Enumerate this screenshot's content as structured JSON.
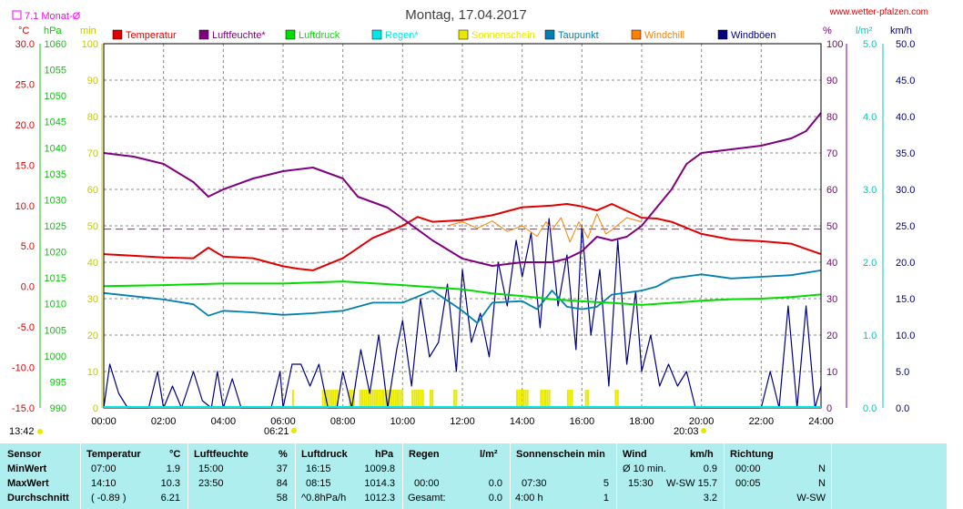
{
  "legend_box_label": "7.1 Monat-Ø",
  "website": "www.wetter-pfalzen.com",
  "colors": {
    "temperature": "#e00000",
    "humidity": "#800080",
    "pressure": "#00dd00",
    "rain": "#00e8e8",
    "sunshine": "#e8e800",
    "dewpoint": "#0080b0",
    "windchill": "#ff8000",
    "gusts": "#000080",
    "month_avg": "#ff00ff"
  },
  "chart_data": {
    "type": "line",
    "title": "Montag, 17.04.2017",
    "x_ticks": [
      "00:00",
      "02:00",
      "04:00",
      "06:00",
      "08:00",
      "10:00",
      "12:00",
      "14:00",
      "16:00",
      "18:00",
      "20:00",
      "22:00",
      "24:00"
    ],
    "sunrise": "06:21",
    "sunset": "20:03",
    "time_marker": "13:42",
    "axes": {
      "temperature": {
        "unit": "°C",
        "range": [
          -15,
          30
        ],
        "ticks": [
          "30.0",
          "25.0",
          "20.0",
          "15.0",
          "10.0",
          "5.0",
          "0.0",
          "-5.0",
          "-10.0",
          "-15.0"
        ]
      },
      "pressure": {
        "unit": "hPa",
        "range": [
          990,
          1060
        ],
        "ticks": [
          "1060",
          "1055",
          "1050",
          "1045",
          "1040",
          "1035",
          "1030",
          "1025",
          "1020",
          "1015",
          "1010",
          "1005",
          "1000",
          "995",
          "990"
        ]
      },
      "sunshine": {
        "unit": "min",
        "range": [
          0,
          100
        ],
        "ticks": [
          "100",
          "90",
          "80",
          "70",
          "60",
          "50",
          "40",
          "30",
          "20",
          "10",
          "0"
        ]
      },
      "humidity": {
        "unit": "%",
        "range": [
          0,
          100
        ],
        "ticks": [
          "100",
          "90",
          "80",
          "70",
          "60",
          "50",
          "40",
          "30",
          "20",
          "10",
          "0"
        ]
      },
      "rain": {
        "unit": "l/m²",
        "range": [
          0,
          5
        ],
        "ticks": [
          "5.0",
          "4.0",
          "3.0",
          "2.0",
          "1.0",
          "0.0"
        ]
      },
      "wind": {
        "unit": "km/h",
        "range": [
          0,
          50
        ],
        "ticks": [
          "50.0",
          "45.0",
          "40.0",
          "35.0",
          "30.0",
          "25.0",
          "20.0",
          "15.0",
          "10.0",
          "5.0",
          "0.0"
        ]
      }
    },
    "legend": [
      {
        "name": "Temperatur",
        "color": "#e00000"
      },
      {
        "name": "Luftfeuchte*",
        "color": "#800080"
      },
      {
        "name": "Luftdruck",
        "color": "#00dd00"
      },
      {
        "name": "Regen*",
        "color": "#00e8e8"
      },
      {
        "name": "Sonnenschein",
        "color": "#e8e800"
      },
      {
        "name": "Taupunkt",
        "color": "#0080b0"
      },
      {
        "name": "Windchill",
        "color": "#ff8000"
      },
      {
        "name": "Windböen",
        "color": "#000080"
      }
    ],
    "month_avg_temperature": 7.1,
    "series": [
      {
        "name": "Temperatur",
        "axis": "temperature",
        "color": "#e00000",
        "x": [
          0,
          1,
          2,
          3,
          3.5,
          4,
          5,
          6,
          6.5,
          7,
          8,
          9,
          10,
          10.5,
          11,
          12,
          13,
          14,
          14.5,
          15,
          15.5,
          16,
          16.5,
          17,
          18,
          18.5,
          19,
          20,
          21,
          22,
          23,
          24
        ],
        "y": [
          4.0,
          3.8,
          3.6,
          3.5,
          4.8,
          3.7,
          3.5,
          2.5,
          2.2,
          2.0,
          3.5,
          6.0,
          7.5,
          8.6,
          8.0,
          8.2,
          8.8,
          9.8,
          9.9,
          10.0,
          10.2,
          9.9,
          9.4,
          10.2,
          8.5,
          8.4,
          8.0,
          6.5,
          5.8,
          5.6,
          5.3,
          4.0
        ]
      },
      {
        "name": "Luftfeuchte*",
        "axis": "humidity",
        "color": "#800080",
        "x": [
          0,
          1,
          2,
          3,
          3.5,
          4,
          5,
          6,
          7,
          8,
          8.5,
          9.5,
          10,
          11,
          12,
          13,
          14,
          15,
          15.5,
          16,
          16.5,
          17,
          17.5,
          18,
          18.5,
          19,
          19.5,
          20,
          21,
          22,
          23,
          23.5,
          24
        ],
        "y": [
          70,
          69,
          67,
          62,
          58,
          60,
          63,
          65,
          66,
          63,
          58,
          55,
          52,
          46,
          41,
          39,
          40,
          40,
          41,
          43,
          47,
          46,
          47,
          50,
          55,
          60,
          67,
          70,
          71,
          72,
          74,
          76,
          81
        ]
      },
      {
        "name": "Luftdruck",
        "axis": "pressure",
        "color": "#00dd00",
        "x": [
          0,
          2,
          4,
          6,
          8,
          10,
          12,
          13,
          14,
          15,
          16,
          17,
          18,
          19,
          20,
          21,
          22,
          23,
          24
        ],
        "y": [
          1013.4,
          1013.6,
          1013.9,
          1013.9,
          1014.3,
          1013.6,
          1012.8,
          1012.0,
          1011.5,
          1010.9,
          1010.5,
          1010.2,
          1009.8,
          1010.2,
          1010.6,
          1010.9,
          1011.0,
          1011.3,
          1011.8
        ]
      },
      {
        "name": "Taupunkt",
        "axis": "temperature",
        "color": "#0080b0",
        "x": [
          0,
          1,
          2,
          3,
          3.5,
          4,
          5,
          6,
          7,
          8,
          9,
          10,
          11,
          12,
          12.5,
          13,
          14,
          14.5,
          15,
          15.5,
          16,
          16.5,
          17,
          18,
          18.5,
          19,
          20,
          21,
          22,
          23,
          24
        ],
        "y": [
          -0.8,
          -1.2,
          -1.6,
          -2.2,
          -3.6,
          -3.0,
          -3.2,
          -3.5,
          -3.3,
          -3.0,
          -2.0,
          -2.0,
          -0.5,
          -3.0,
          -4.5,
          -2.0,
          -1.8,
          -2.8,
          -0.5,
          -2.5,
          -2.8,
          -2.5,
          -1.0,
          -0.5,
          0.0,
          1.0,
          1.5,
          1.0,
          1.2,
          1.4,
          2.0
        ]
      },
      {
        "name": "Windchill",
        "axis": "temperature",
        "color": "#ff8000",
        "x": [
          11.5,
          12,
          12.5,
          13,
          13.5,
          14,
          14.5,
          14.8,
          15,
          15.3,
          15.6,
          15.9,
          16.2,
          16.5,
          16.8,
          17,
          17.5,
          18
        ],
        "y": [
          7.5,
          8.0,
          7.2,
          8.1,
          6.8,
          7.5,
          6.2,
          8.0,
          7.0,
          8.5,
          5.5,
          8.0,
          6.0,
          9.0,
          6.5,
          7.0,
          8.5,
          8.0
        ]
      },
      {
        "name": "Windböen",
        "axis": "wind",
        "color": "#000080",
        "x": [
          0,
          0.2,
          0.5,
          0.8,
          1.0,
          1.5,
          1.8,
          2.0,
          2.3,
          2.6,
          3.0,
          3.3,
          3.6,
          3.8,
          4.0,
          4.3,
          4.6,
          5.0,
          5.3,
          5.6,
          5.9,
          6.0,
          6.3,
          6.6,
          6.9,
          7.2,
          7.5,
          7.8,
          8.0,
          8.3,
          8.6,
          8.9,
          9.2,
          9.5,
          9.8,
          10.0,
          10.3,
          10.6,
          10.9,
          11.2,
          11.5,
          11.8,
          12.0,
          12.3,
          12.6,
          12.9,
          13.2,
          13.5,
          13.8,
          14.0,
          14.3,
          14.6,
          14.9,
          15.2,
          15.5,
          15.8,
          16.0,
          16.3,
          16.6,
          16.9,
          17.2,
          17.5,
          17.8,
          18.0,
          18.3,
          18.6,
          18.9,
          19.2,
          19.5,
          19.8,
          20.0,
          20.5,
          21.0,
          21.5,
          22.0,
          22.3,
          22.6,
          22.9,
          23.2,
          23.5,
          23.8,
          24.0
        ],
        "y": [
          0,
          6,
          2,
          0,
          0,
          0,
          5,
          0,
          3,
          0,
          5,
          1,
          0,
          5,
          0,
          4,
          0,
          0,
          0,
          0,
          5,
          0,
          6,
          6,
          3,
          6,
          0,
          0,
          5,
          0,
          8,
          2,
          10,
          0,
          8,
          12,
          3,
          15,
          7,
          9,
          17,
          5,
          19,
          9,
          13,
          7,
          20,
          14,
          23,
          18,
          24,
          11,
          26,
          14,
          21,
          8,
          25,
          10,
          19,
          3,
          23,
          6,
          16,
          5,
          10,
          3,
          6,
          3,
          5,
          0,
          0,
          0,
          0,
          0,
          0,
          5,
          0,
          14,
          0,
          14,
          0,
          3
        ]
      }
    ]
  },
  "stats": {
    "headers": {
      "sensor": "Sensor",
      "temp": "Temperatur",
      "temp_unit": "°C",
      "hum": "Luftfeuchte",
      "hum_unit": "%",
      "press": "Luftdruck",
      "press_unit": "hPa",
      "rain": "Regen",
      "rain_unit": "l/m²",
      "sun": "Sonnenschein min",
      "wind": "Wind",
      "wind_unit": "km/h",
      "dir": "Richtung"
    },
    "rows": [
      {
        "label": "MinWert",
        "temp_time": "07:00",
        "temp_val": "1.9",
        "hum_time": "15:00",
        "hum_val": "37",
        "press_time": "16:15",
        "press_val": "1009.8",
        "rain_time": "",
        "rain_val": "",
        "sun_time": "",
        "sun_val": "",
        "wind_time": "Ø 10 min.",
        "wind_dir": "",
        "wind_val": "0.9",
        "dir_time": "00:00",
        "dir_val": "N"
      },
      {
        "label": "MaxWert",
        "temp_time": "14:10",
        "temp_val": "10.3",
        "hum_time": "23:50",
        "hum_val": "84",
        "press_time": "08:15",
        "press_val": "1014.3",
        "rain_time": "00:00",
        "rain_val": "0.0",
        "sun_time": "07:30",
        "sun_val": "5",
        "wind_time": "15:30",
        "wind_dir": "W-SW",
        "wind_val": "15.7",
        "dir_time": "00:05",
        "dir_val": "N"
      },
      {
        "label": "Durchschnitt",
        "temp_time": "( -0.89 )",
        "temp_val": "6.21",
        "hum_time": "",
        "hum_val": "58",
        "press_time": "^0.8hPa/h",
        "press_val": "1012.3",
        "rain_time": "Gesamt:",
        "rain_val": "0.0",
        "sun_time": "4:00 h",
        "sun_val": "1",
        "wind_time": "",
        "wind_dir": "",
        "wind_val": "3.2",
        "dir_time": "",
        "dir_val": "W-SW"
      }
    ]
  }
}
